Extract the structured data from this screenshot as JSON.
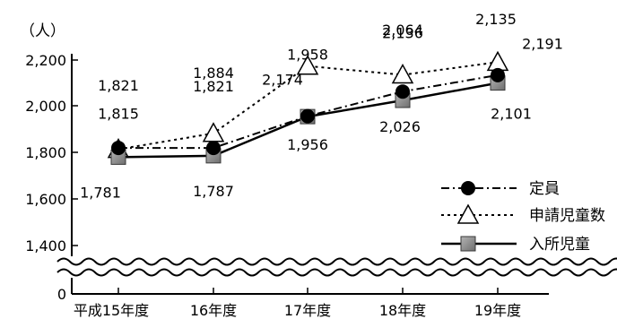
{
  "chart_data": {
    "type": "line",
    "y_unit": "（人）",
    "categories": [
      "平成15年度",
      "16年度",
      "17年度",
      "18年度",
      "19年度"
    ],
    "yticks": [
      "0",
      "1,400",
      "1,600",
      "1,800",
      "2,000",
      "2,200"
    ],
    "ylim": [
      1400,
      2200
    ],
    "axis_break": true,
    "grid": false,
    "legend_position": "right",
    "series": [
      {
        "name": "定員",
        "key": "teiin",
        "marker": "circle",
        "line_style": "dash-dot",
        "values": [
          1821,
          1821,
          1958,
          2064,
          2135
        ],
        "labels": [
          "1,821",
          "1,821",
          "1,958",
          "2,064",
          "2,135"
        ]
      },
      {
        "name": "申請児童数",
        "key": "shinsei",
        "marker": "triangle",
        "line_style": "dotted",
        "values": [
          1815,
          1884,
          2174,
          2136,
          2191
        ],
        "labels": [
          "1,815",
          "1,884",
          "2,174",
          "2,136",
          "2,191"
        ]
      },
      {
        "name": "入所児童",
        "key": "nyusho",
        "marker": "square",
        "line_style": "solid",
        "values": [
          1781,
          1787,
          1956,
          2026,
          2101
        ],
        "labels": [
          "1,781",
          "1,787",
          "1,956",
          "2,026",
          "2,101"
        ]
      }
    ]
  }
}
